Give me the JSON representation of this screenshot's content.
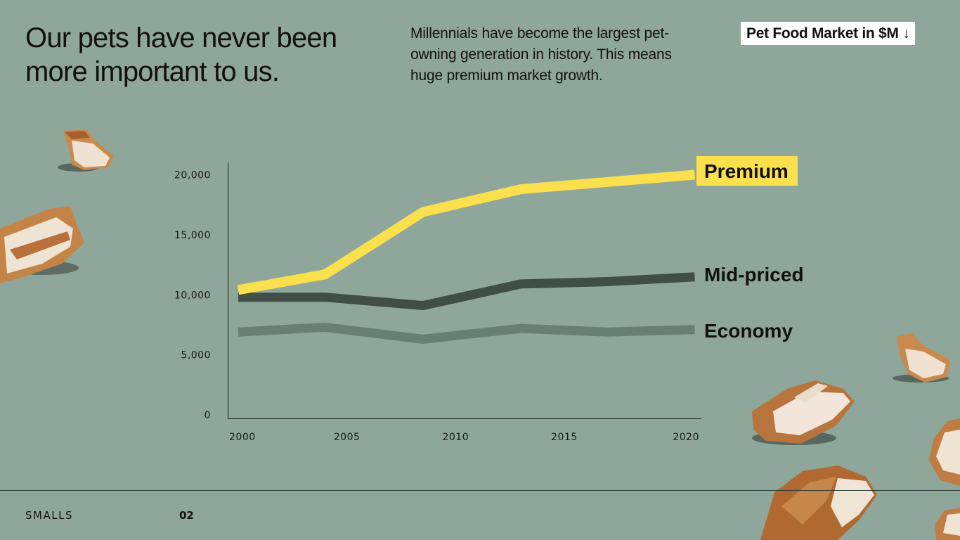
{
  "headline": "Our pets have never been more important to us.",
  "subhead": "Millennials have become the largest pet-owning generation in history. This means huge premium market growth.",
  "badge": "Pet Food Market in $M ↓",
  "footer": {
    "brand": "SMALLS",
    "page": "02"
  },
  "colors": {
    "background": "#8fa69a",
    "premium": "#fbe04e",
    "mid": "#3f4e47",
    "economy": "#6a7f74"
  },
  "chart_data": {
    "type": "line",
    "title": "Pet Food Market in $M",
    "x_ticks": [
      "2000",
      "2005",
      "2010",
      "2015",
      "2020"
    ],
    "y_ticks": [
      "0",
      "5,000",
      "10,000",
      "15,000",
      "20,000"
    ],
    "xlim": [
      2000,
      2021.5
    ],
    "ylim": [
      0,
      20500
    ],
    "grid": false,
    "series": [
      {
        "name": "Premium",
        "color": "#fbe04e",
        "x": [
          2000,
          2004,
          2008.5,
          2013,
          2017,
          2021
        ],
        "y": [
          10400,
          11700,
          16900,
          18800,
          19400,
          20000
        ]
      },
      {
        "name": "Mid-priced",
        "color": "#3f4e47",
        "x": [
          2000,
          2004,
          2008.5,
          2013,
          2017,
          2021
        ],
        "y": [
          9800,
          9800,
          9100,
          10900,
          11100,
          11500
        ]
      },
      {
        "name": "Economy",
        "color": "#6a7f74",
        "x": [
          2000,
          2004,
          2008.5,
          2013,
          2017,
          2021
        ],
        "y": [
          6900,
          7300,
          6300,
          7200,
          6900,
          7100
        ]
      }
    ]
  }
}
